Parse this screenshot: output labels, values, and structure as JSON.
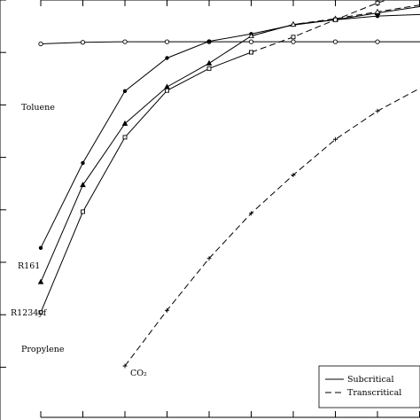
{
  "chart_data": {
    "type": "line",
    "title": "",
    "xlabel": "",
    "ylabel": "",
    "grid": false,
    "legend_placement": "bottom-right",
    "legend": [
      {
        "label": "Subcritical",
        "style": "solid"
      },
      {
        "label": "Transcritical",
        "style": "dashed"
      }
    ],
    "xlim": [
      0,
      9.5
    ],
    "ylim": [
      0,
      8
    ],
    "x_tick_count": 10,
    "y_tick_count": 8,
    "series": [
      {
        "name": "Toluene",
        "marker": "circle",
        "segments": [
          {
            "style": "solid",
            "points": [
              [
                0,
                6.14
              ],
              [
                1,
                6.17
              ],
              [
                2,
                6.18
              ],
              [
                3,
                6.18
              ],
              [
                4,
                6.18
              ],
              [
                5,
                6.18
              ],
              [
                6,
                6.18
              ],
              [
                7,
                6.18
              ],
              [
                8,
                6.18
              ],
              [
                9,
                6.18
              ],
              [
                9.5,
                6.18
              ]
            ]
          }
        ]
      },
      {
        "name": "R161",
        "marker": "dot",
        "segments": [
          {
            "style": "solid",
            "points": [
              [
                0,
                2.25
              ],
              [
                1,
                3.87
              ],
              [
                2,
                5.24
              ],
              [
                3,
                5.87
              ],
              [
                4,
                6.19
              ],
              [
                5,
                6.33
              ],
              [
                6,
                6.5
              ],
              [
                7,
                6.6
              ],
              [
                8,
                6.67
              ],
              [
                9,
                6.7
              ],
              [
                9.5,
                6.72
              ]
            ]
          }
        ]
      },
      {
        "name": "R1234yf",
        "marker": "triangle",
        "segments": [
          {
            "style": "solid",
            "points": [
              [
                0,
                1.6
              ],
              [
                1,
                3.45
              ],
              [
                2,
                4.62
              ],
              [
                3,
                5.32
              ],
              [
                4,
                5.77
              ],
              [
                5,
                6.29
              ],
              [
                6,
                6.51
              ],
              [
                7,
                6.6
              ],
              [
                8,
                6.73
              ],
              [
                9,
                6.85
              ],
              [
                9.5,
                6.89
              ]
            ]
          },
          {
            "style": "dashed",
            "points": [
              [
                5,
                6.29
              ],
              [
                6,
                6.51
              ],
              [
                7,
                6.62
              ],
              [
                8,
                6.75
              ],
              [
                9,
                6.88
              ],
              [
                9.5,
                6.93
              ]
            ]
          }
        ]
      },
      {
        "name": "Propylene",
        "marker": "square",
        "segments": [
          {
            "style": "solid",
            "points": [
              [
                0,
                1.02
              ],
              [
                1,
                2.94
              ],
              [
                2,
                4.36
              ],
              [
                3,
                5.25
              ],
              [
                4,
                5.67
              ],
              [
                5,
                5.98
              ]
            ]
          },
          {
            "style": "dashed",
            "points": [
              [
                5,
                5.98
              ],
              [
                6,
                6.27
              ],
              [
                7,
                6.6
              ],
              [
                8,
                6.92
              ],
              [
                9,
                7.17
              ],
              [
                9.5,
                7.28
              ]
            ]
          }
        ]
      },
      {
        "name": "CO₂",
        "marker": "plus",
        "segments": [
          {
            "style": "dashed",
            "points": [
              [
                2,
                0
              ],
              [
                3,
                1.06
              ],
              [
                4,
                2.05
              ],
              [
                5,
                2.91
              ],
              [
                6,
                3.64
              ],
              [
                7,
                4.32
              ],
              [
                8,
                4.86
              ],
              [
                9,
                5.29
              ],
              [
                9.5,
                5.55
              ]
            ]
          }
        ]
      }
    ]
  }
}
